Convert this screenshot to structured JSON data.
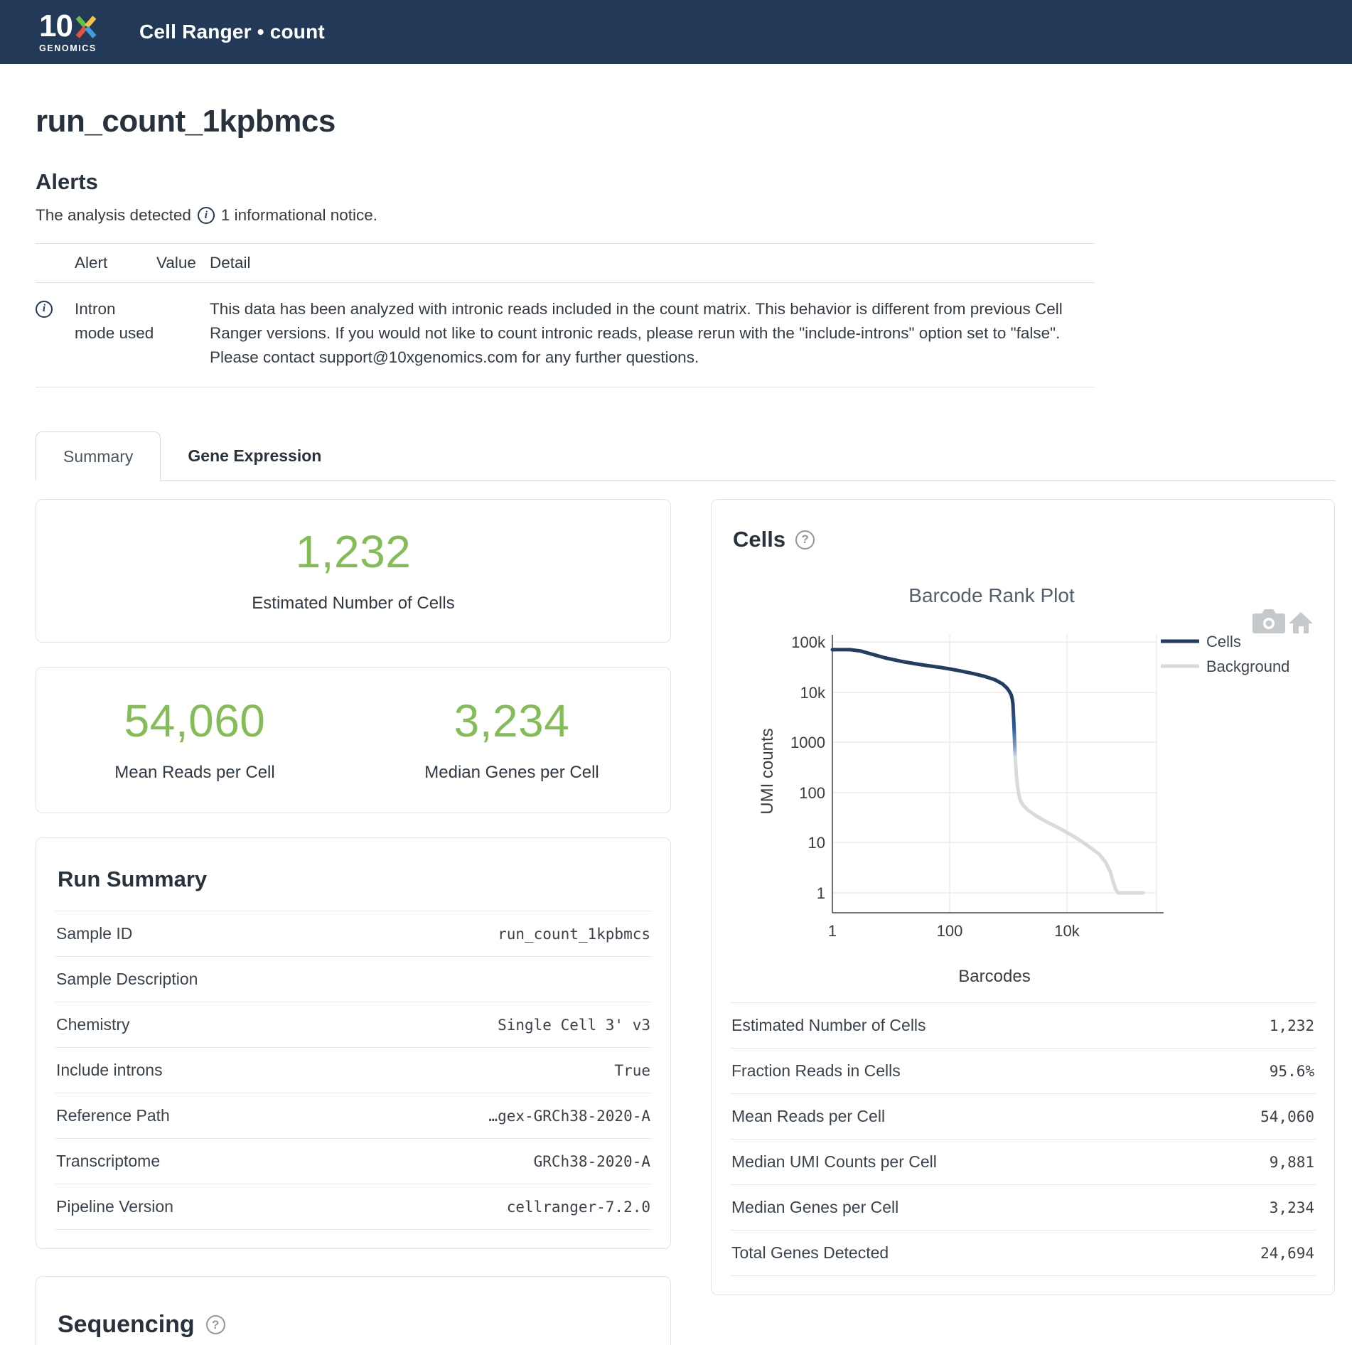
{
  "header": {
    "brand_number": "10",
    "brand_sub": "GENOMICS",
    "app_title": "Cell Ranger • count"
  },
  "page": {
    "title": "run_count_1kpbmcs"
  },
  "alerts": {
    "heading": "Alerts",
    "notice_prefix": "The analysis detected",
    "notice_suffix": "1 informational notice.",
    "table": {
      "headers": {
        "alert": "Alert",
        "value": "Value",
        "detail": "Detail"
      },
      "rows": [
        {
          "alert": "Intron mode used",
          "value": "",
          "detail": "This data has been analyzed with intronic reads included in the count matrix. This behavior is different from previous Cell Ranger versions. If you would not like to count intronic reads, please rerun with the \"include-introns\" option set to \"false\". Please contact support@10xgenomics.com for any further questions."
        }
      ]
    }
  },
  "tabs": [
    {
      "label": "Summary",
      "active": true
    },
    {
      "label": "Gene Expression",
      "active": false
    }
  ],
  "metric_cards": {
    "estimated_cells": {
      "value": "1,232",
      "label": "Estimated Number of Cells"
    },
    "mean_reads": {
      "value": "54,060",
      "label": "Mean Reads per Cell"
    },
    "median_genes": {
      "value": "3,234",
      "label": "Median Genes per Cell"
    }
  },
  "run_summary": {
    "heading": "Run Summary",
    "rows": [
      {
        "label": "Sample ID",
        "value": "run_count_1kpbmcs"
      },
      {
        "label": "Sample Description",
        "value": ""
      },
      {
        "label": "Chemistry",
        "value": "Single Cell 3' v3"
      },
      {
        "label": "Include introns",
        "value": "True"
      },
      {
        "label": "Reference Path",
        "value": "…gex-GRCh38-2020-A"
      },
      {
        "label": "Transcriptome",
        "value": "GRCh38-2020-A"
      },
      {
        "label": "Pipeline Version",
        "value": "cellranger-7.2.0"
      }
    ]
  },
  "sequencing": {
    "heading": "Sequencing"
  },
  "cells_panel": {
    "heading": "Cells",
    "metrics": [
      {
        "label": "Estimated Number of Cells",
        "value": "1,232"
      },
      {
        "label": "Fraction Reads in Cells",
        "value": "95.6%"
      },
      {
        "label": "Mean Reads per Cell",
        "value": "54,060"
      },
      {
        "label": "Median UMI Counts per Cell",
        "value": "9,881"
      },
      {
        "label": "Median Genes per Cell",
        "value": "3,234"
      },
      {
        "label": "Total Genes Detected",
        "value": "24,694"
      }
    ],
    "chart_data": {
      "type": "line",
      "title": "Barcode Rank Plot",
      "xlabel": "Barcodes",
      "ylabel": "UMI counts",
      "x_scale": "log",
      "y_scale": "log",
      "x_ticks": [
        "1",
        "100",
        "10k"
      ],
      "x_tick_values": [
        1,
        100,
        10000
      ],
      "y_ticks": [
        "100k",
        "10k",
        "1000",
        "100",
        "10",
        "1"
      ],
      "y_tick_values": [
        100000,
        10000,
        1000,
        100,
        10,
        1
      ],
      "xlim": [
        1,
        300000
      ],
      "ylim": [
        1,
        100000
      ],
      "grid": true,
      "legend_position": "right",
      "legend": [
        "Cells",
        "Background"
      ],
      "series": [
        {
          "name": "Cells",
          "color": "#223d63",
          "points": [
            [
              1,
              70000
            ],
            [
              2,
              70000
            ],
            [
              3,
              66000
            ],
            [
              5,
              56000
            ],
            [
              8,
              48000
            ],
            [
              15,
              41000
            ],
            [
              25,
              37000
            ],
            [
              40,
              34000
            ],
            [
              70,
              31000
            ],
            [
              100,
              29000
            ],
            [
              150,
              26500
            ],
            [
              250,
              23500
            ],
            [
              400,
              20500
            ],
            [
              600,
              17500
            ],
            [
              800,
              14500
            ],
            [
              950,
              12000
            ],
            [
              1050,
              10200
            ],
            [
              1120,
              8800
            ],
            [
              1170,
              7200
            ],
            [
              1200,
              5800
            ]
          ]
        },
        {
          "name": "Transition",
          "color": "gradient",
          "points": [
            [
              1200,
              5800
            ],
            [
              1230,
              3200
            ],
            [
              1255,
              1900
            ],
            [
              1275,
              1150
            ],
            [
              1290,
              800
            ],
            [
              1300,
              620
            ],
            [
              1310,
              500
            ]
          ]
        },
        {
          "name": "Background",
          "color": "#d8dadd",
          "points": [
            [
              1310,
              500
            ],
            [
              1340,
              330
            ],
            [
              1380,
              210
            ],
            [
              1430,
              140
            ],
            [
              1500,
              95
            ],
            [
              1600,
              70
            ],
            [
              1800,
              55
            ],
            [
              2200,
              44
            ],
            [
              3000,
              34
            ],
            [
              4500,
              26
            ],
            [
              7000,
              20
            ],
            [
              11000,
              15
            ],
            [
              17000,
              11
            ],
            [
              25000,
              8
            ],
            [
              35000,
              6
            ],
            [
              45000,
              4.2
            ],
            [
              55000,
              2.6
            ],
            [
              62000,
              1.6
            ],
            [
              68000,
              1.15
            ],
            [
              75000,
              1
            ],
            [
              120000,
              1
            ],
            [
              200000,
              1
            ]
          ]
        }
      ]
    }
  },
  "colors": {
    "header_navy": "#223a57",
    "metric_green": "#84bd55",
    "cells_trace": "#223d63",
    "background_trace": "#d8dadd",
    "grid_line": "#ebebeb",
    "axis_line": "#444444"
  }
}
